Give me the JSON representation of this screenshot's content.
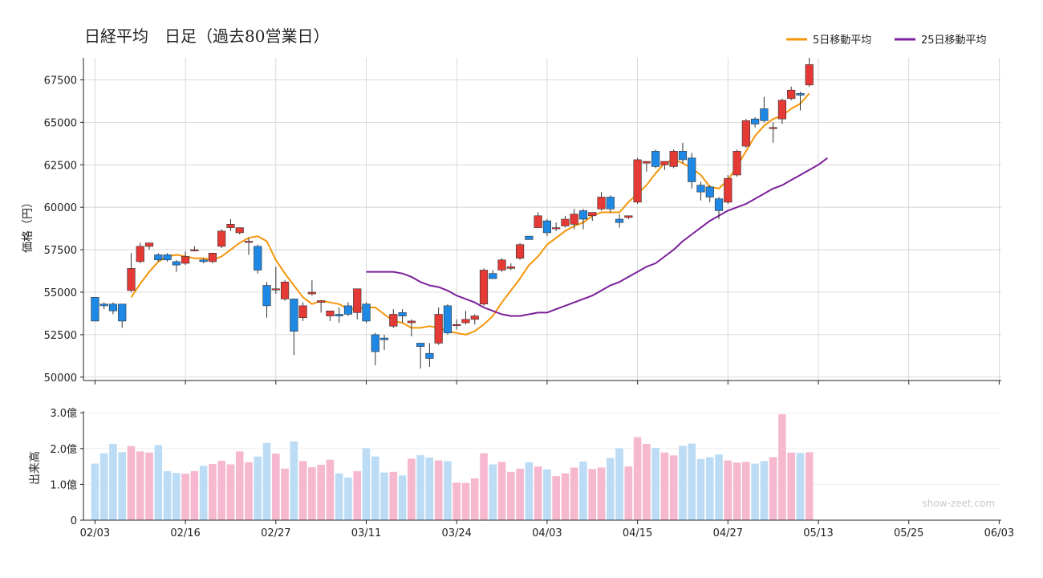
{
  "chart_data": [
    {
      "type": "candlestick",
      "title": "日経平均　日足（過去80営業日）",
      "ylabel": "価格（円）",
      "ylim": [
        49800,
        68800
      ],
      "yticks": [
        50000,
        52500,
        55000,
        57500,
        60000,
        62500,
        65000,
        67500
      ],
      "xticks": [
        {
          "index": 0,
          "label": "02/03"
        },
        {
          "index": 10,
          "label": "02/16"
        },
        {
          "index": 20,
          "label": "02/27"
        },
        {
          "index": 30,
          "label": "03/11"
        },
        {
          "index": 40,
          "label": "03/24"
        },
        {
          "index": 50,
          "label": "04/03"
        },
        {
          "index": 60,
          "label": "04/15"
        },
        {
          "index": 70,
          "label": "04/27"
        },
        {
          "index": 80,
          "label": "05/13"
        },
        {
          "index": 90,
          "label": "05/25"
        },
        {
          "index": 100,
          "label": "06/03"
        }
      ],
      "up_color": "#e53935",
      "down_color": "#1e88e5",
      "candles": [
        [
          54700,
          54700,
          53300,
          53300
        ],
        [
          54300,
          54400,
          54000,
          54200
        ],
        [
          54300,
          54400,
          53700,
          53900
        ],
        [
          54300,
          54300,
          52900,
          53300
        ],
        [
          55100,
          57300,
          55000,
          56400
        ],
        [
          56800,
          57900,
          56700,
          57700
        ],
        [
          57700,
          57900,
          57500,
          57900
        ],
        [
          57200,
          57300,
          56800,
          56900
        ],
        [
          57200,
          57300,
          56800,
          56900
        ],
        [
          56800,
          56900,
          56200,
          56600
        ],
        [
          56700,
          57400,
          56600,
          57100
        ],
        [
          57500,
          57700,
          57400,
          57500
        ],
        [
          56900,
          57000,
          56700,
          56800
        ],
        [
          56800,
          57300,
          56700,
          57300
        ],
        [
          57700,
          58700,
          57600,
          58600
        ],
        [
          58800,
          59300,
          58600,
          59000
        ],
        [
          58500,
          58800,
          58400,
          58800
        ],
        [
          58000,
          58200,
          57200,
          58000
        ],
        [
          57700,
          57800,
          56100,
          56300
        ],
        [
          55400,
          55600,
          53500,
          54200
        ],
        [
          55200,
          56500,
          54900,
          55200
        ],
        [
          54600,
          55700,
          54500,
          55600
        ],
        [
          54600,
          54600,
          51300,
          52700
        ],
        [
          53500,
          54400,
          53300,
          54200
        ],
        [
          54900,
          55700,
          54800,
          55000
        ],
        [
          54400,
          54500,
          53800,
          54500
        ],
        [
          53600,
          53900,
          53300,
          53900
        ],
        [
          53700,
          54100,
          53200,
          53600
        ],
        [
          54200,
          54400,
          53600,
          53700
        ],
        [
          53800,
          55200,
          53400,
          55200
        ],
        [
          54300,
          54400,
          53200,
          53300
        ],
        [
          52500,
          52600,
          50700,
          51500
        ],
        [
          52300,
          52500,
          51600,
          52200
        ],
        [
          53000,
          54000,
          52900,
          53700
        ],
        [
          53800,
          54000,
          53200,
          53600
        ],
        [
          53200,
          53400,
          52400,
          53300
        ],
        [
          52000,
          52000,
          50500,
          51800
        ],
        [
          51400,
          52000,
          50600,
          51100
        ],
        [
          52000,
          54100,
          51900,
          53700
        ],
        [
          54200,
          54300,
          52500,
          52600
        ],
        [
          53100,
          53400,
          52800,
          53100
        ],
        [
          53200,
          53900,
          53100,
          53400
        ],
        [
          53400,
          53700,
          53100,
          53600
        ],
        [
          54300,
          56400,
          54200,
          56300
        ],
        [
          56100,
          56300,
          55800,
          55800
        ],
        [
          56300,
          57000,
          56200,
          56900
        ],
        [
          56400,
          56700,
          56300,
          56500
        ],
        [
          57000,
          57900,
          56900,
          57800
        ],
        [
          58300,
          58300,
          58100,
          58100
        ],
        [
          58800,
          59700,
          58800,
          59500
        ],
        [
          59200,
          59300,
          58300,
          58500
        ],
        [
          58800,
          59100,
          58600,
          58800
        ],
        [
          58900,
          59500,
          58800,
          59300
        ],
        [
          59000,
          59900,
          58700,
          59600
        ],
        [
          59800,
          59900,
          58700,
          59300
        ],
        [
          59500,
          59700,
          59200,
          59700
        ],
        [
          59900,
          60900,
          59800,
          60600
        ],
        [
          60600,
          60700,
          59700,
          59900
        ],
        [
          59300,
          59600,
          58800,
          59100
        ],
        [
          59400,
          59500,
          59300,
          59500
        ],
        [
          60300,
          62900,
          60200,
          62800
        ],
        [
          62600,
          62700,
          62100,
          62700
        ],
        [
          63300,
          63400,
          62300,
          62400
        ],
        [
          62500,
          62700,
          62200,
          62700
        ],
        [
          62400,
          63400,
          62300,
          63300
        ],
        [
          63300,
          63800,
          62600,
          62800
        ],
        [
          62900,
          63200,
          61100,
          61500
        ],
        [
          61300,
          61500,
          60400,
          60900
        ],
        [
          61200,
          61300,
          60300,
          60600
        ],
        [
          60500,
          60600,
          59300,
          59800
        ],
        [
          60300,
          61900,
          60200,
          61700
        ],
        [
          61900,
          63400,
          61800,
          63300
        ],
        [
          63600,
          65200,
          63500,
          65100
        ],
        [
          65200,
          65300,
          64700,
          64900
        ],
        [
          65800,
          66500,
          65000,
          65100
        ],
        [
          64700,
          65000,
          63800,
          64700
        ],
        [
          65200,
          66400,
          64900,
          66300
        ],
        [
          66400,
          67100,
          66300,
          66900
        ],
        [
          66700,
          66800,
          65700,
          66600
        ],
        [
          67200,
          68800,
          67100,
          68400
        ]
      ],
      "series": [
        {
          "name": "5日移動平均",
          "color": "#f5960a",
          "start": 4,
          "values": [
            54700,
            55500,
            56200,
            56800,
            57100,
            57200,
            57100,
            57000,
            57000,
            56900,
            57100,
            57500,
            57900,
            58200,
            58300,
            58000,
            56900,
            56100,
            55400,
            54700,
            54300,
            54500,
            54400,
            54300,
            54000,
            54000,
            54100,
            54100,
            53700,
            53300,
            53200,
            52900,
            52900,
            53000,
            52900,
            52700,
            52600,
            52500,
            52700,
            53100,
            53600,
            54400,
            55100,
            55800,
            56600,
            57100,
            57800,
            58200,
            58600,
            58900,
            59100,
            59500,
            59700,
            59700,
            59700,
            60300,
            60800,
            61300,
            62000,
            62600,
            62800,
            62600,
            62300,
            61900,
            61200,
            61100,
            61600,
            62400,
            63300,
            64200,
            64800,
            65200,
            65400,
            65800,
            66100,
            66700
          ]
        },
        {
          "name": "25日移動平均",
          "color": "#7b2099",
          "start": 30,
          "values": [
            56200,
            56200,
            56200,
            56200,
            56100,
            55900,
            55600,
            55400,
            55300,
            55100,
            54800,
            54600,
            54400,
            54100,
            53900,
            53700,
            53600,
            53600,
            53700,
            53800,
            53800,
            54000,
            54200,
            54400,
            54600,
            54800,
            55100,
            55400,
            55600,
            55900,
            56200,
            56500,
            56700,
            57100,
            57500,
            58000,
            58400,
            58800,
            59200,
            59500,
            59800,
            60000,
            60200,
            60500,
            60800,
            61100,
            61300,
            61600,
            61900,
            62200,
            62500,
            62900
          ]
        }
      ]
    },
    {
      "type": "bar",
      "ylabel": "出来高",
      "ylim": [
        0,
        3.05
      ],
      "yticks": [
        {
          "value": 0,
          "label": "0"
        },
        {
          "value": 1.0,
          "label": "1.0億"
        },
        {
          "value": 2.0,
          "label": "2.0億"
        },
        {
          "value": 3.0,
          "label": "3.0億"
        }
      ],
      "up_color": "#f5b8cf",
      "down_color": "#bcdcf5",
      "values": [
        1.58,
        1.87,
        2.13,
        1.9,
        2.07,
        1.92,
        1.89,
        2.1,
        1.37,
        1.32,
        1.3,
        1.37,
        1.52,
        1.57,
        1.66,
        1.56,
        1.92,
        1.62,
        1.78,
        2.16,
        1.86,
        1.44,
        2.2,
        1.65,
        1.48,
        1.55,
        1.69,
        1.31,
        1.19,
        1.37,
        2.01,
        1.78,
        1.33,
        1.35,
        1.25,
        1.72,
        1.82,
        1.75,
        1.67,
        1.65,
        1.05,
        1.04,
        1.17,
        1.87,
        1.56,
        1.63,
        1.35,
        1.44,
        1.62,
        1.5,
        1.42,
        1.23,
        1.31,
        1.47,
        1.64,
        1.43,
        1.47,
        1.74,
        2.01,
        1.5,
        2.32,
        2.13,
        2.02,
        1.89,
        1.81,
        2.08,
        2.14,
        1.71,
        1.76,
        1.84,
        1.67,
        1.61,
        1.63,
        1.58,
        1.65,
        1.76,
        2.96,
        1.89,
        1.88,
        1.9
      ]
    }
  ],
  "watermark": "show-zeet.com"
}
